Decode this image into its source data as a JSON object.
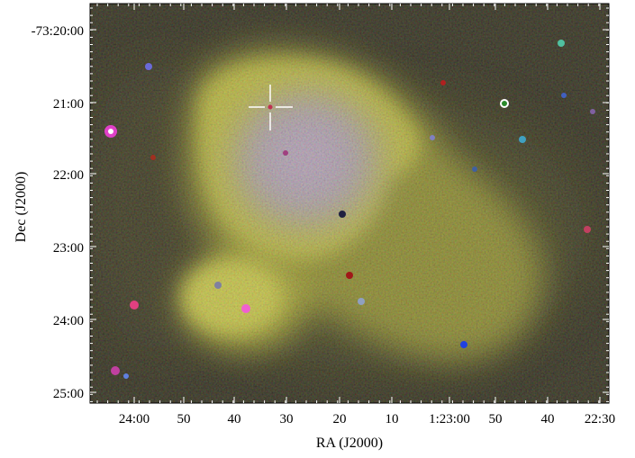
{
  "image": {
    "description_free": true,
    "x_axis": {
      "label": "RA (J2000)",
      "tick_labels": [
        "24:00",
        "50",
        "40",
        "30",
        "20",
        "10",
        "1:23:00",
        "50",
        "40",
        "22:30"
      ]
    },
    "y_axis": {
      "label": "Dec (J2000)",
      "tick_labels": [
        "-73:20:00",
        "21:00",
        "22:00",
        "23:00",
        "24:00",
        "25:00"
      ]
    },
    "colors": {
      "background": "#0f0d06",
      "nebula_outer": "#8f8d1e",
      "nebula_bright": "#c8c434",
      "nebula_core": "#a794b8",
      "marker": "#ffffff",
      "axes": "#000000"
    }
  }
}
